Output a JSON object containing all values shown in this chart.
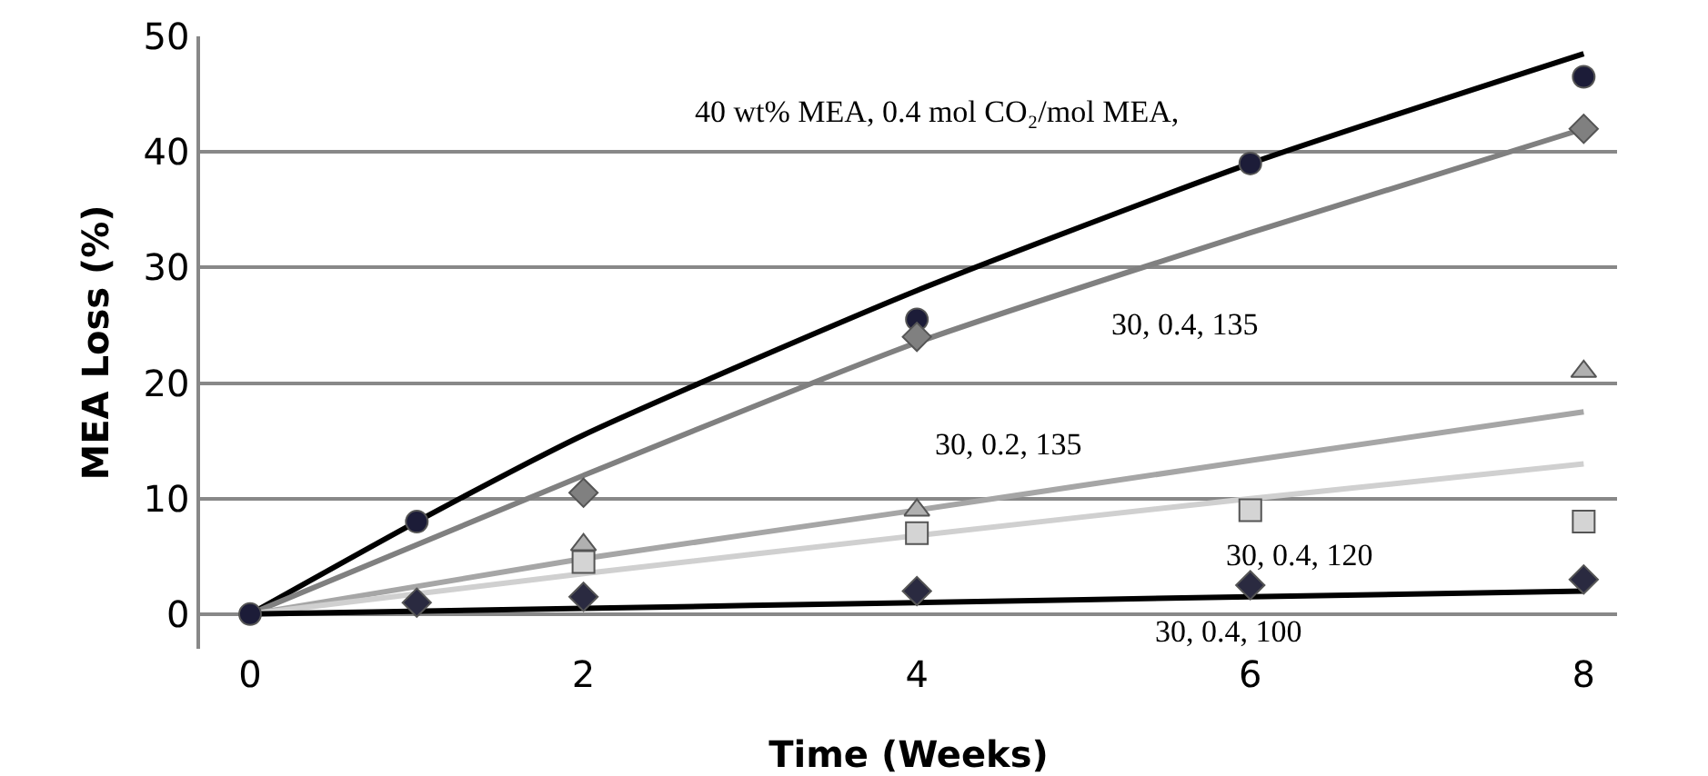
{
  "chart_data": {
    "type": "scatter",
    "xlabel": "Time (Weeks)",
    "ylabel": "MEA Loss (%)",
    "xlim": [
      -0.3,
      8.2
    ],
    "xticks": [
      0,
      2,
      4,
      6,
      8
    ],
    "ylim": [
      -3,
      50
    ],
    "yticks": [
      0,
      10,
      20,
      30,
      40,
      50
    ],
    "grid": "y",
    "series": [
      {
        "type": "line",
        "color": "#000000",
        "marker": "none",
        "x": [
          0,
          1,
          2,
          4,
          6,
          8
        ],
        "values": [
          0,
          8,
          15.5,
          28,
          39,
          48.5
        ]
      },
      {
        "type": "line",
        "color": "#808080",
        "marker": "none",
        "x": [
          0,
          2,
          4,
          6,
          8
        ],
        "values": [
          0,
          12,
          23.5,
          33,
          42
        ]
      },
      {
        "type": "line",
        "color": "#a6a6a6",
        "marker": "none",
        "x": [
          0,
          2,
          4,
          6,
          8
        ],
        "values": [
          0,
          4.8,
          9,
          13.3,
          17.5
        ]
      },
      {
        "type": "line",
        "color": "#d0d0d0",
        "marker": "none",
        "x": [
          0,
          2,
          4,
          6,
          8
        ],
        "values": [
          0,
          3.5,
          6.8,
          10,
          13
        ]
      },
      {
        "type": "line",
        "color": "#000000",
        "marker": "none",
        "x": [
          0,
          2,
          4,
          6,
          8
        ],
        "values": [
          0,
          0.5,
          1,
          1.5,
          2
        ]
      },
      {
        "type": "scatter",
        "color": "#1c1c38",
        "marker": "circle",
        "x": [
          0,
          1,
          4,
          6,
          8
        ],
        "values": [
          0,
          8,
          25.5,
          39,
          46.5
        ]
      },
      {
        "type": "scatter",
        "color": "#808080",
        "marker": "diamond",
        "x": [
          2,
          4,
          8
        ],
        "values": [
          10.5,
          24,
          42
        ]
      },
      {
        "type": "scatter",
        "color": "#b0b0b0",
        "marker": "triangle",
        "x": [
          2,
          4,
          8
        ],
        "values": [
          6,
          9,
          21
        ]
      },
      {
        "type": "scatter",
        "color": "#d4d4d4",
        "marker": "square",
        "x": [
          2,
          4,
          6,
          8
        ],
        "values": [
          4.5,
          7,
          9,
          8
        ]
      },
      {
        "type": "scatter",
        "color": "#2a2a40",
        "marker": "diamond",
        "x": [
          1,
          2,
          4,
          6,
          8
        ],
        "values": [
          1,
          1.5,
          2,
          2.5,
          3
        ]
      }
    ],
    "annotations": [
      "40 wt% MEA, 0.4 mol CO₂/mol MEA,",
      "30, 0.4, 135",
      "30, 0.2, 135",
      "30, 0.4, 120",
      "30, 0.4, 100"
    ]
  }
}
